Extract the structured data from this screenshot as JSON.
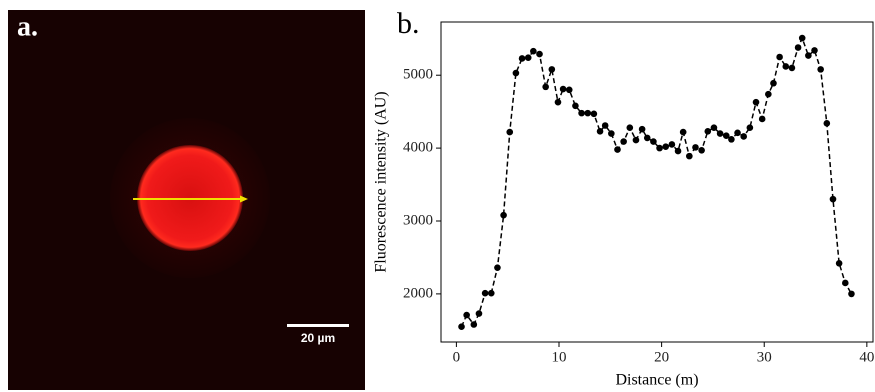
{
  "panel_a": {
    "label": "a.",
    "scale_bar_label": "20 µm"
  },
  "chart_data": {
    "type": "line",
    "panel_label": "b.",
    "xlabel": "Distance (m)",
    "ylabel": "Fluorescence intensity (AU)",
    "color": "#000000",
    "linestyle": "dashed",
    "marker": "circle",
    "x": [
      0.5,
      1.0,
      1.7,
      2.2,
      2.8,
      3.4,
      4.0,
      4.6,
      5.2,
      5.8,
      6.4,
      7.0,
      7.5,
      8.1,
      8.7,
      9.3,
      9.9,
      10.4,
      11.0,
      11.6,
      12.2,
      12.8,
      13.4,
      14.0,
      14.5,
      15.1,
      15.7,
      16.3,
      16.9,
      17.5,
      18.1,
      18.6,
      19.2,
      19.8,
      20.4,
      21.0,
      21.6,
      22.1,
      22.7,
      23.3,
      23.9,
      24.5,
      25.1,
      25.7,
      26.3,
      26.8,
      27.4,
      28.0,
      28.6,
      29.2,
      29.8,
      30.4,
      30.9,
      31.5,
      32.1,
      32.7,
      33.3,
      33.7,
      34.3,
      34.9,
      35.5,
      36.1,
      36.7,
      37.3,
      37.9,
      38.5
    ],
    "values": [
      1550,
      1710,
      1580,
      1730,
      2010,
      2010,
      2360,
      3080,
      4220,
      5030,
      5230,
      5240,
      5330,
      5290,
      4840,
      5080,
      4630,
      4810,
      4800,
      4580,
      4480,
      4480,
      4470,
      4230,
      4310,
      4200,
      3980,
      4090,
      4280,
      4110,
      4260,
      4140,
      4090,
      4000,
      4020,
      4050,
      3960,
      4220,
      3890,
      4010,
      3970,
      4230,
      4280,
      4200,
      4170,
      4120,
      4210,
      4160,
      4280,
      4630,
      4400,
      4740,
      4890,
      5250,
      5120,
      5100,
      5380,
      5510,
      5270,
      5340,
      5080,
      4340,
      3300,
      2420,
      2150,
      2000
    ],
    "xlim": [
      -1.5,
      40.6
    ],
    "ylim": [
      1340,
      5730
    ],
    "xticks": [
      0,
      10,
      20,
      30,
      40
    ],
    "yticks": [
      2000,
      3000,
      4000,
      5000
    ]
  }
}
